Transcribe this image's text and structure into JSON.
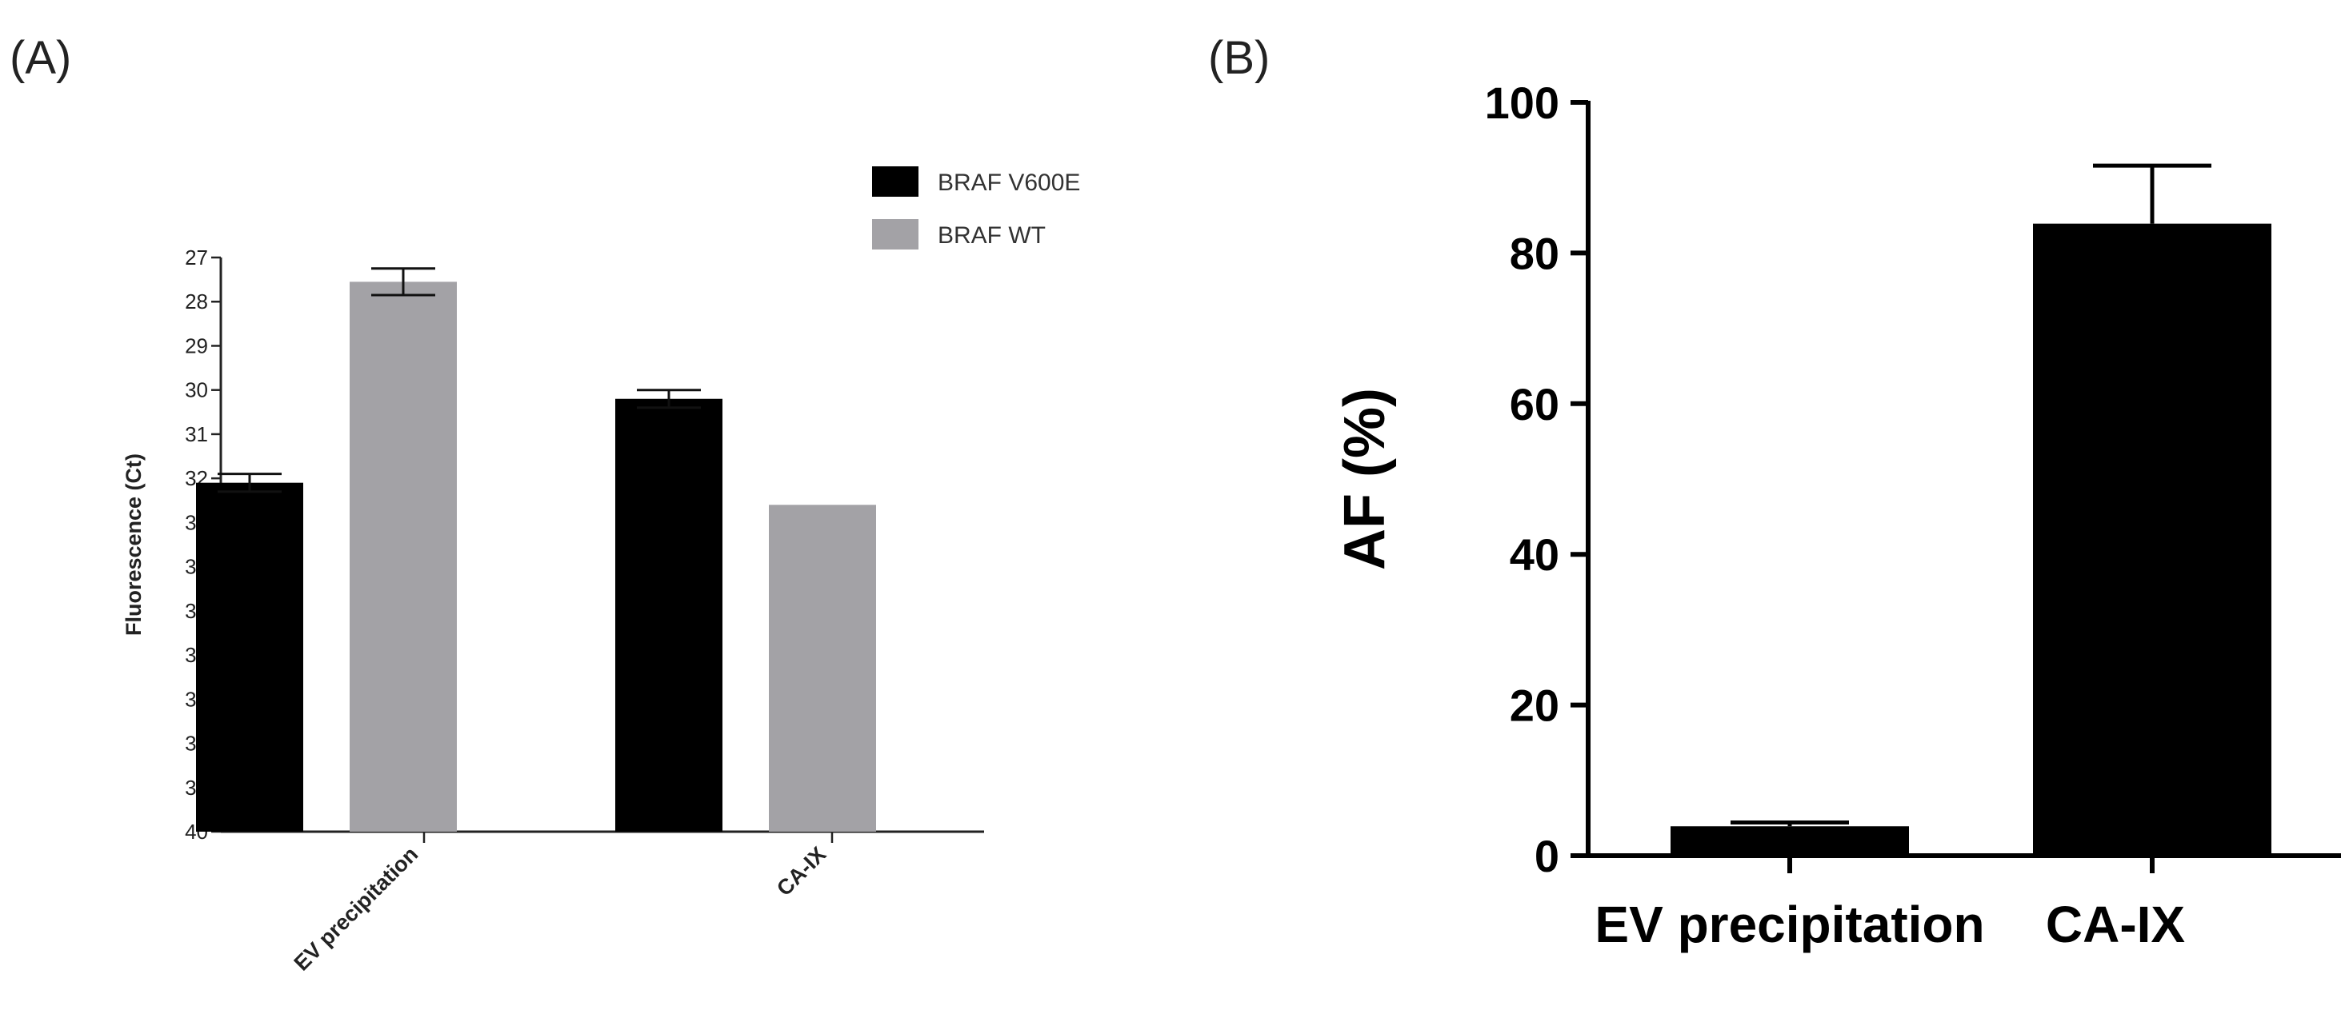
{
  "chart_data": [
    {
      "panel": "(A)",
      "type": "bar",
      "ylabel": "Fluorescence (Ct)",
      "ylim": [
        40,
        27
      ],
      "yticks": [
        27,
        28,
        29,
        30,
        31,
        32,
        33,
        34,
        35,
        36,
        37,
        38,
        39,
        40
      ],
      "categories": [
        "EV precipitation",
        "CA-IX"
      ],
      "legend_position": "top-right",
      "series": [
        {
          "name": "BRAF V600E",
          "color": "#000000",
          "values": [
            32.1,
            30.2
          ],
          "errors": [
            0.2,
            0.2
          ]
        },
        {
          "name": "BRAF WT",
          "color": "#a3a2a6",
          "values": [
            27.55,
            32.6
          ],
          "errors": [
            0.3,
            null
          ]
        }
      ]
    },
    {
      "panel": "(B)",
      "type": "bar",
      "ylabel": "AF (%)",
      "ylim": [
        0,
        100
      ],
      "yticks": [
        0,
        20,
        40,
        60,
        80,
        100
      ],
      "categories": [
        "EV precipitation",
        "CA-IX"
      ],
      "series": [
        {
          "color": "#000000",
          "values": [
            3.9,
            83.9
          ],
          "errors": [
            0.5,
            7.7
          ]
        }
      ]
    }
  ]
}
